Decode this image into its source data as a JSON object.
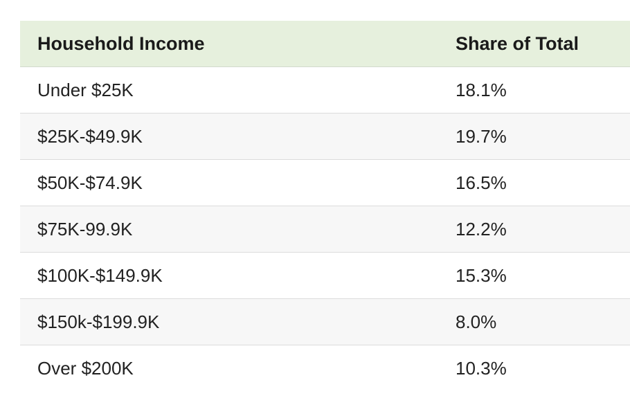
{
  "table": {
    "headers": [
      "Household Income",
      "Share of Total"
    ],
    "rows": [
      {
        "income": "Under $25K",
        "share": "18.1%"
      },
      {
        "income": "$25K-$49.9K",
        "share": "19.7%"
      },
      {
        "income": "$50K-$74.9K",
        "share": "16.5%"
      },
      {
        "income": "$75K-99.9K",
        "share": "12.2%"
      },
      {
        "income": "$100K-$149.9K",
        "share": "15.3%"
      },
      {
        "income": "$150k-$199.9K",
        "share": "8.0%"
      },
      {
        "income": "Over $200K",
        "share": "10.3%"
      }
    ]
  },
  "colors": {
    "header_background": "#e6f0dd",
    "striped_row": "#f7f7f7"
  }
}
